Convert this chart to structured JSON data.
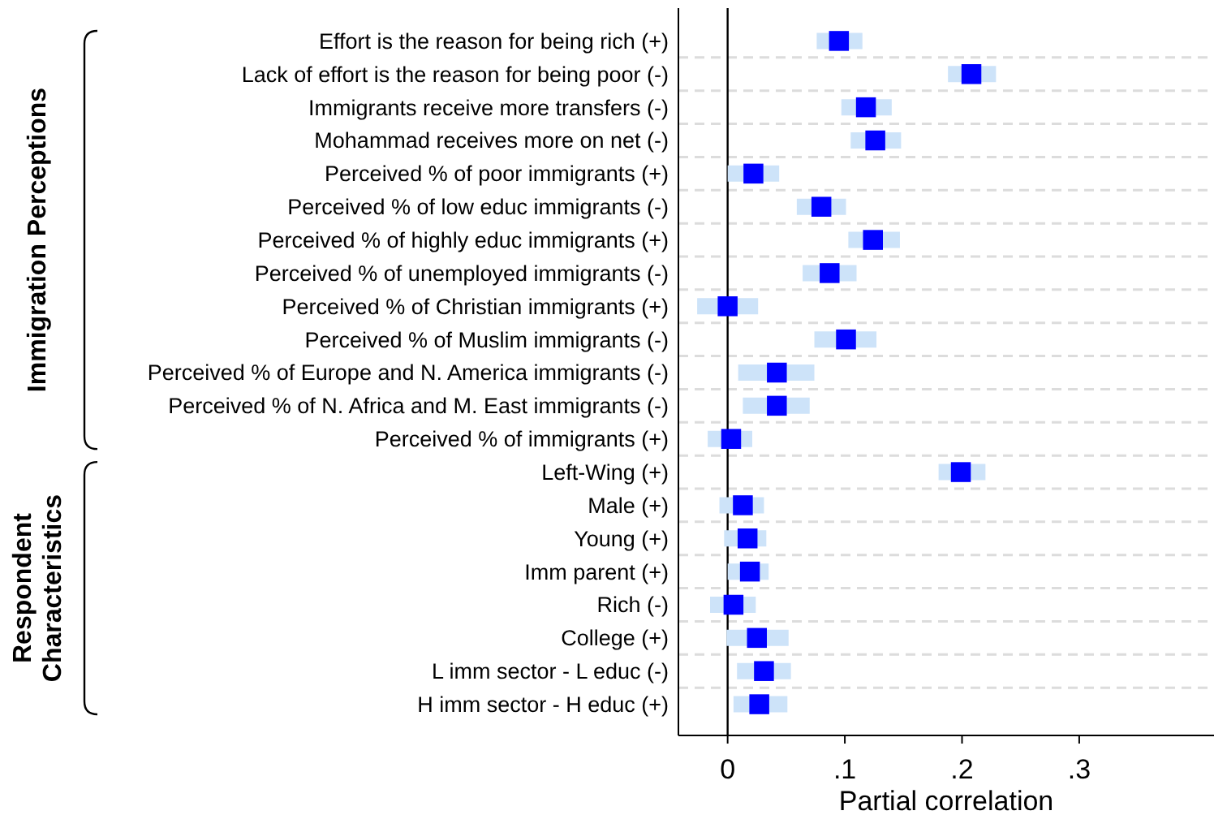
{
  "chart_data": {
    "type": "scatter",
    "orientation": "horizontal",
    "xlabel": "Partial correlation",
    "categories": [
      "Effort is the reason for being rich (+)",
      "Lack of effort is the reason for being poor (-)",
      "Immigrants receive more transfers (-)",
      "Mohammad receives more on net (-)",
      "Perceived % of poor immigrants (+)",
      "Perceived % of low educ immigrants (-)",
      "Perceived %  of highly educ immigrants (+)",
      "Perceived % of unemployed immigrants (-)",
      "Perceived % of Christian immigrants (+)",
      "Perceived % of Muslim immigrants (-)",
      "Perceived % of Europe and N. America immigrants (-)",
      "Perceived % of N. Africa and M. East immigrants (-)",
      "Perceived % of immigrants (+)",
      "Left-Wing (+)",
      "Male (+)",
      "Young (+)",
      "Imm parent (+)",
      "Rich (-)",
      "College (+)",
      "L imm sector - L educ (-)",
      "H imm sector - H educ (+)"
    ],
    "series": [
      {
        "color": "#0000ff",
        "values": [
          0.095,
          0.208,
          0.118,
          0.126,
          0.022,
          0.08,
          0.124,
          0.087,
          0.0,
          0.101,
          0.042,
          0.042,
          0.003,
          0.199,
          0.013,
          0.017,
          0.019,
          0.005,
          0.025,
          0.031,
          0.027
        ],
        "errors": [
          [
            0.076,
            0.115
          ],
          [
            0.188,
            0.229
          ],
          [
            0.097,
            0.14
          ],
          [
            0.105,
            0.148
          ],
          [
            0.0,
            0.044
          ],
          [
            0.059,
            0.101
          ],
          [
            0.103,
            0.147
          ],
          [
            0.064,
            0.11
          ],
          [
            -0.026,
            0.026
          ],
          [
            0.074,
            0.127
          ],
          [
            0.009,
            0.074
          ],
          [
            0.013,
            0.07
          ],
          [
            -0.017,
            0.021
          ],
          [
            0.18,
            0.22
          ],
          [
            -0.007,
            0.031
          ],
          [
            -0.003,
            0.033
          ],
          [
            0.0,
            0.035
          ],
          [
            -0.015,
            0.024
          ],
          [
            -0.001,
            0.052
          ],
          [
            0.008,
            0.054
          ],
          [
            0.005,
            0.051
          ]
        ]
      }
    ],
    "marker": "square",
    "xlim": [
      -0.042,
      0.415
    ],
    "xticks": [
      0,
      {
        "value": 0.1,
        "label": ".1"
      },
      {
        "value": 0.2,
        "label": ".2"
      },
      {
        "value": 0.3,
        "label": ".3"
      }
    ],
    "grid": "y",
    "ref_lines": [
      {
        "axis": "x",
        "value": 0
      }
    ],
    "annotations": [
      "Immigration Perceptions",
      "Respondent Characteristics"
    ]
  }
}
